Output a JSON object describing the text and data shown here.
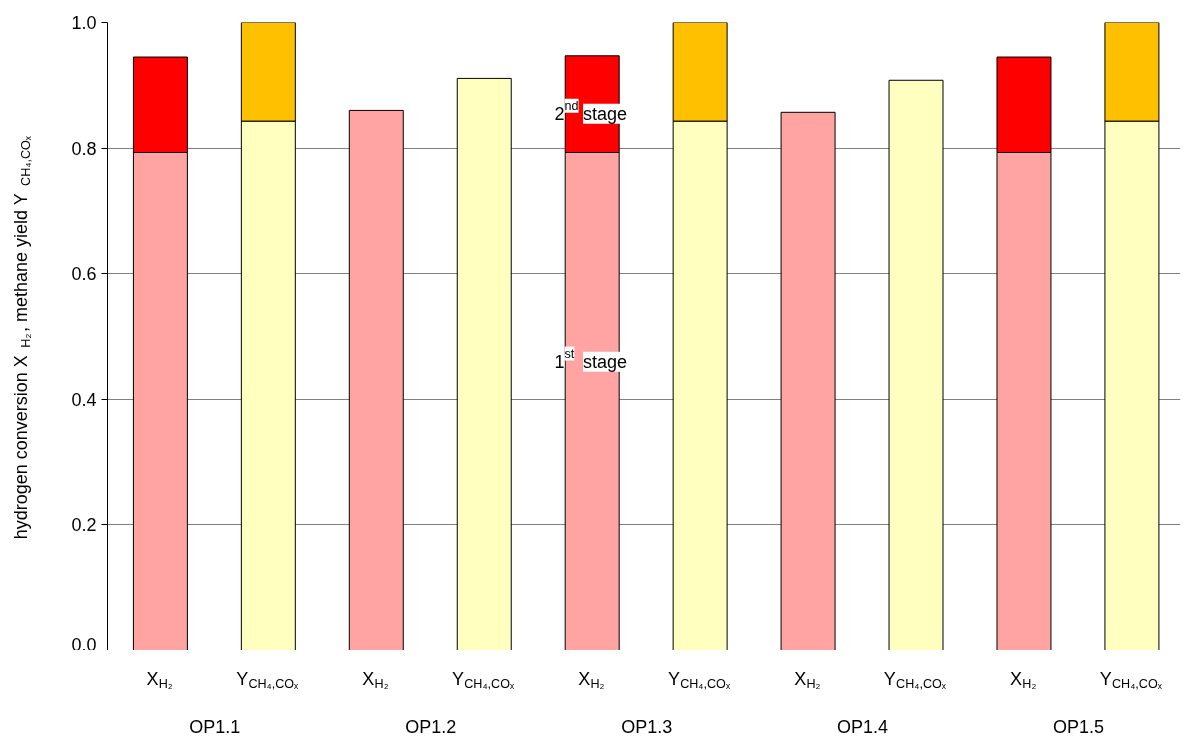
{
  "chart_data": {
    "type": "bar",
    "stacked": true,
    "ylabel": "hydrogen conversion X$_{H₂}$, methane yield Y$_{CH₄,COₓ}$",
    "categories": [
      "X$_{H₂}$",
      "Y$_{CH₄,COₓ}$",
      "X$_{H₂}$",
      "Y$_{CH₄,COₓ}$",
      "X$_{H₂}$",
      "Y$_{CH₄,COₓ}$",
      "X$_{H₂}$",
      "Y$_{CH₄,COₓ}$",
      "X$_{H₂}$",
      "Y$_{CH₄,COₓ}$"
    ],
    "series": [
      {
        "name": "1$^{st}$ stage",
        "colors": [
          "#ffa3a3",
          "#ffffc0",
          "#ffa3a3",
          "#ffffc0",
          "#ffa3a3",
          "#ffffc0",
          "#ffa3a3",
          "#ffffc0",
          "#ffa3a3",
          "#ffffc0"
        ],
        "values": [
          0.793,
          0.843,
          0.86,
          0.911,
          0.793,
          0.843,
          0.857,
          0.908,
          0.793,
          0.843
        ]
      },
      {
        "name": "2$^{nd}$ stage",
        "colors": [
          "#ff0000",
          "#ffc000",
          "#ff0000",
          "#ffc000",
          "#ff0000",
          "#ffc000",
          "#ff0000",
          "#ffc000",
          "#ff0000",
          "#ffc000"
        ],
        "values": [
          0.152,
          0.157,
          null,
          null,
          0.154,
          0.157,
          null,
          null,
          0.152,
          0.157
        ]
      }
    ],
    "annotations": [
      "OP1.1",
      "OP1.2",
      "OP1.3",
      "OP1.4",
      "OP1.5"
    ],
    "ylim": [
      0,
      1.0
    ],
    "yticks": [
      {
        "value": 0,
        "label": "0.0"
      },
      {
        "value": 0.2,
        "label": "0.2"
      },
      {
        "value": 0.4,
        "label": "0.4"
      },
      {
        "value": 0.6,
        "label": "0.6"
      },
      {
        "value": 0.8,
        "label": "0.8"
      },
      {
        "value": 1.0,
        "label": "1.0"
      }
    ],
    "grid": "y",
    "legend": false
  }
}
